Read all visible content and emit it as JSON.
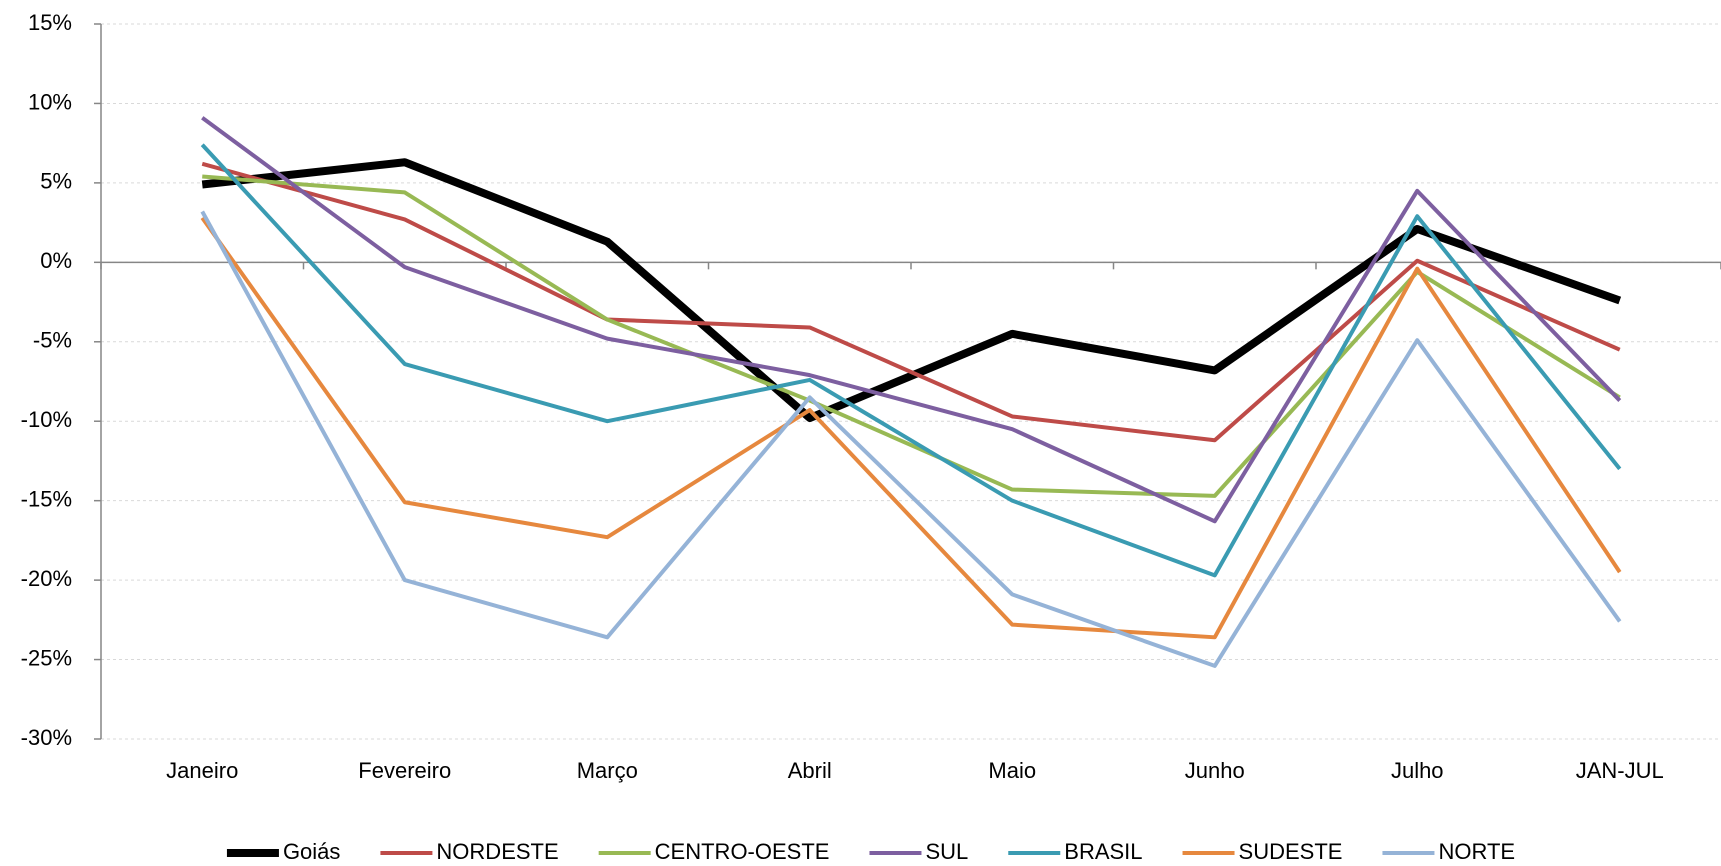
{
  "chart_data": {
    "type": "line",
    "categories": [
      "Janeiro",
      "Fevereiro",
      "Março",
      "Abril",
      "Maio",
      "Junho",
      "Julho",
      "JAN-JUL"
    ],
    "series": [
      {
        "name": "Goiás",
        "color": "#000000",
        "values": [
          4.9,
          6.3,
          1.3,
          -9.8,
          -4.5,
          -6.8,
          2.1,
          -2.4
        ]
      },
      {
        "name": "NORDESTE",
        "color": "#be4b48",
        "values": [
          6.2,
          2.7,
          -3.6,
          -4.1,
          -9.7,
          -11.2,
          0.1,
          -5.5
        ]
      },
      {
        "name": "CENTRO-OESTE",
        "color": "#98b954",
        "values": [
          5.4,
          4.4,
          -3.6,
          -8.7,
          -14.3,
          -14.7,
          -0.6,
          -8.5
        ]
      },
      {
        "name": "SUL",
        "color": "#7d5fa0",
        "values": [
          9.1,
          -0.3,
          -4.8,
          -7.1,
          -10.5,
          -16.3,
          4.5,
          -8.7
        ]
      },
      {
        "name": "BRASIL",
        "color": "#3a9bb2",
        "values": [
          7.4,
          -6.4,
          -10.0,
          -7.4,
          -15.0,
          -19.7,
          2.9,
          -13.0
        ]
      },
      {
        "name": "SUDESTE",
        "color": "#e6883e",
        "values": [
          2.8,
          -15.1,
          -17.3,
          -9.3,
          -22.8,
          -23.6,
          -0.4,
          -19.5
        ]
      },
      {
        "name": "NORTE",
        "color": "#95b3d7",
        "values": [
          3.2,
          -20.0,
          -23.6,
          -8.5,
          -20.9,
          -25.4,
          -4.9,
          -22.6
        ]
      }
    ],
    "ylim": [
      -30,
      15
    ],
    "yticks": [
      {
        "value": -30,
        "label": "-30%"
      },
      {
        "value": -25,
        "label": "-25%"
      },
      {
        "value": -20,
        "label": "-20%"
      },
      {
        "value": -15,
        "label": "-15%"
      },
      {
        "value": -10,
        "label": "-10%"
      },
      {
        "value": -5,
        "label": "-5%"
      },
      {
        "value": 0,
        "label": "0%"
      },
      {
        "value": 5,
        "label": "5%"
      },
      {
        "value": 10,
        "label": "10%"
      },
      {
        "value": 15,
        "label": "15%"
      }
    ],
    "grid": true,
    "legend": "bottom"
  }
}
